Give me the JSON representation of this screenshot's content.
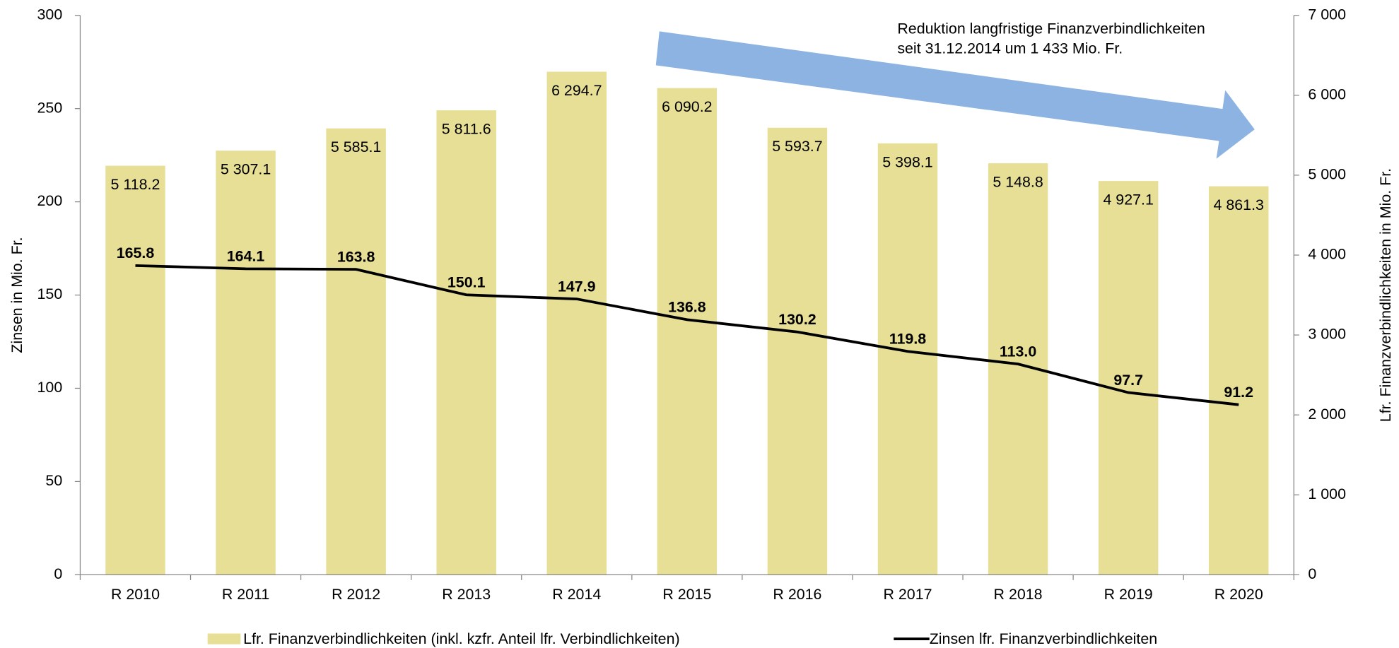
{
  "chart_data": {
    "type": "bar_line",
    "categories": [
      "R 2010",
      "R 2011",
      "R 2012",
      "R 2013",
      "R 2014",
      "R 2015",
      "R 2016",
      "R 2017",
      "R 2018",
      "R 2019",
      "R 2020"
    ],
    "series": [
      {
        "name": "Lfr. Finanzverbindlichkeiten (inkl. kzfr. Anteil lfr. Verbindlichkeiten)",
        "type": "bar",
        "axis": "y2",
        "color": "#e6df95",
        "values": [
          5118.2,
          5307.1,
          5585.1,
          5811.6,
          6294.7,
          6090.2,
          5593.7,
          5398.1,
          5148.8,
          4927.1,
          4861.3
        ],
        "value_labels": [
          "5 118.2",
          "5 307.1",
          "5 585.1",
          "5 811.6",
          "6 294.7",
          "6 090.2",
          "5 593.7",
          "5 398.1",
          "5 148.8",
          "4 927.1",
          "4 861.3"
        ]
      },
      {
        "name": "Zinsen lfr. Finanzverbindlichkeiten",
        "type": "line",
        "axis": "y",
        "color": "#000000",
        "values": [
          165.8,
          164.1,
          163.8,
          150.1,
          147.9,
          136.8,
          130.2,
          119.8,
          113.0,
          97.7,
          91.2
        ],
        "value_labels": [
          "165.8",
          "164.1",
          "163.8",
          "150.1",
          "147.9",
          "136.8",
          "130.2",
          "119.8",
          "113.0",
          "97.7",
          "91.2"
        ]
      }
    ],
    "ylabel": "Zinsen in Mio. Fr.",
    "y2label": "Lfr. Finanzverbindlichkeiten in Mio. Fr.",
    "ylim": [
      0,
      300
    ],
    "yticks": [
      0,
      50,
      100,
      150,
      200,
      250,
      300
    ],
    "y2lim": [
      0,
      7000
    ],
    "y2ticks": [
      0,
      {
        "value": 1000,
        "label": "1 000"
      },
      {
        "value": 2000,
        "label": "2 000"
      },
      {
        "value": 3000,
        "label": "3 000"
      },
      {
        "value": 4000,
        "label": "4 000"
      },
      {
        "value": 5000,
        "label": "5 000"
      },
      {
        "value": 6000,
        "label": "6 000"
      },
      {
        "value": 7000,
        "label": "7 000"
      }
    ],
    "annotation": [
      "Reduktion langfristige Finanzverbindlichkeiten",
      "seit 31.12.2014 um 1 433 Mio. Fr."
    ],
    "legend": "bottom"
  }
}
